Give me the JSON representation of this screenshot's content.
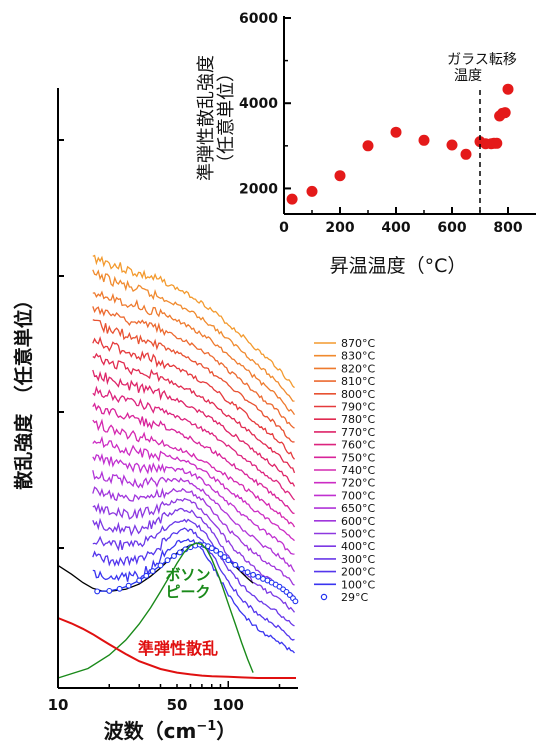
{
  "chart_data": [
    {
      "type": "line",
      "xlabel": "波数（cm",
      "xlabel_sup": "−1",
      "xlabel_end": "）",
      "ylabel": "散乱強度　（任意単位）",
      "x_scale": "log",
      "xlim": [
        10,
        250
      ],
      "x_ticks": [
        10,
        50,
        100
      ],
      "x_tick_labels": [
        "10",
        "50",
        "100"
      ],
      "y_ticks_labeled": false,
      "legend_position": "right",
      "series_base_shape": {
        "x": [
          16,
          18,
          20,
          23,
          26,
          30,
          35,
          40,
          45,
          50,
          55,
          60,
          65,
          70,
          75,
          80,
          90,
          100,
          120,
          140,
          160,
          180,
          200,
          220,
          245
        ],
        "y": [
          1.0,
          0.99,
          0.97,
          0.95,
          0.93,
          0.91,
          0.89,
          0.87,
          0.85,
          0.83,
          0.81,
          0.79,
          0.77,
          0.75,
          0.73,
          0.71,
          0.67,
          0.63,
          0.57,
          0.51,
          0.46,
          0.42,
          0.38,
          0.33,
          0.28
        ]
      },
      "series": [
        {
          "name": "870°C",
          "color": "#f39a2e",
          "offset": 20
        },
        {
          "name": "830°C",
          "color": "#f08a2e",
          "offset": 19
        },
        {
          "name": "820°C",
          "color": "#ee7a2e",
          "offset": 18
        },
        {
          "name": "810°C",
          "color": "#ec6a30",
          "offset": 17
        },
        {
          "name": "800°C",
          "color": "#e85232",
          "offset": 16
        },
        {
          "name": "790°C",
          "color": "#e53a3c",
          "offset": 15
        },
        {
          "name": "780°C",
          "color": "#e02a50",
          "offset": 14
        },
        {
          "name": "770°C",
          "color": "#de2468",
          "offset": 13
        },
        {
          "name": "760°C",
          "color": "#dc247e",
          "offset": 12
        },
        {
          "name": "750°C",
          "color": "#d8249a",
          "offset": 11
        },
        {
          "name": "740°C",
          "color": "#d428b0",
          "offset": 10
        },
        {
          "name": "720°C",
          "color": "#cc2cc4",
          "offset": 9
        },
        {
          "name": "700°C",
          "color": "#c030d0",
          "offset": 8
        },
        {
          "name": "650°C",
          "color": "#b034d8",
          "offset": 7
        },
        {
          "name": "600°C",
          "color": "#a036dc",
          "offset": 6
        },
        {
          "name": "500°C",
          "color": "#8e38e0",
          "offset": 5
        },
        {
          "name": "400°C",
          "color": "#7c38e4",
          "offset": 4
        },
        {
          "name": "300°C",
          "color": "#6a38e8",
          "offset": 3
        },
        {
          "name": "200°C",
          "color": "#5436ec",
          "offset": 2
        },
        {
          "name": "100°C",
          "color": "#3a34f0",
          "offset": 1
        },
        {
          "name": "29°C",
          "color": "#2233f0",
          "offset": 0,
          "marker": "open-circle"
        }
      ],
      "peak_series": [
        {
          "label": "ボソン\nピーク",
          "color": "#1a8a1a",
          "x": [
            10,
            15,
            20,
            25,
            30,
            35,
            40,
            45,
            50,
            55,
            60,
            65,
            70,
            75,
            80,
            90,
            100,
            110,
            120,
            130,
            140
          ],
          "y": [
            0.0,
            0.07,
            0.17,
            0.28,
            0.4,
            0.52,
            0.64,
            0.75,
            0.85,
            0.93,
            0.98,
            1.0,
            0.99,
            0.95,
            0.88,
            0.72,
            0.55,
            0.4,
            0.26,
            0.14,
            0.04
          ]
        },
        {
          "label": "準弾性散乱",
          "color": "#e01010",
          "x": [
            10,
            12,
            14,
            16,
            18,
            20,
            25,
            30,
            40,
            50,
            60,
            70,
            80,
            100,
            120,
            150,
            200,
            250
          ],
          "y": [
            1.0,
            0.91,
            0.82,
            0.73,
            0.64,
            0.56,
            0.4,
            0.28,
            0.15,
            0.09,
            0.06,
            0.04,
            0.03,
            0.02,
            0.01,
            0.0,
            0.0,
            0.0
          ]
        }
      ],
      "fit_curve": {
        "color": "#000000",
        "x": [
          10,
          12,
          14,
          16,
          18,
          20,
          25,
          30,
          35,
          40,
          45,
          50,
          55,
          60,
          65,
          70,
          75,
          80,
          90,
          100,
          110,
          120,
          130,
          140
        ],
        "y": [
          0.55,
          0.38,
          0.22,
          0.11,
          0.06,
          0.05,
          0.09,
          0.19,
          0.34,
          0.5,
          0.66,
          0.79,
          0.88,
          0.94,
          0.97,
          0.97,
          0.95,
          0.9,
          0.79,
          0.66,
          0.53,
          0.41,
          0.3,
          0.21
        ]
      },
      "sample_29C_points": {
        "x": [
          17,
          20,
          23,
          26,
          30,
          33,
          36,
          40,
          44,
          48,
          52,
          56,
          60,
          64,
          68,
          72,
          76,
          80,
          85,
          90,
          95,
          100,
          110,
          120,
          130,
          140,
          150,
          160,
          170,
          180,
          190,
          200,
          210,
          220,
          230,
          240,
          248
        ],
        "y": [
          0.05,
          0.06,
          0.1,
          0.16,
          0.26,
          0.35,
          0.44,
          0.55,
          0.65,
          0.73,
          0.8,
          0.86,
          0.9,
          0.93,
          0.95,
          0.94,
          0.92,
          0.88,
          0.83,
          0.77,
          0.71,
          0.65,
          0.56,
          0.48,
          0.42,
          0.37,
          0.33,
          0.29,
          0.26,
          0.22,
          0.18,
          0.14,
          0.09,
          0.04,
          -0.02,
          -0.08,
          -0.14
        ]
      }
    },
    {
      "type": "scatter",
      "xlabel": "昇温温度（°C）",
      "ylabel": "準弾性散乱強度\n（任意単位）",
      "xlim": [
        0,
        900
      ],
      "ylim": [
        1400,
        6000
      ],
      "x_ticks": [
        0,
        200,
        400,
        600,
        800
      ],
      "y_ticks": [
        2000,
        4000,
        6000
      ],
      "marker_color": "#e41a1a",
      "x": [
        29,
        100,
        200,
        300,
        400,
        500,
        600,
        650,
        700,
        720,
        740,
        750,
        760,
        770,
        780,
        790,
        800
      ],
      "y": [
        1750,
        1930,
        2300,
        3000,
        3320,
        3130,
        3020,
        2800,
        3100,
        3050,
        3050,
        3060,
        3060,
        3700,
        3760,
        3780,
        4330
      ],
      "annotation": {
        "text_line1": "ガラス転移",
        "text_line2": "温度",
        "x": 700,
        "line_style": "dashed"
      }
    }
  ]
}
